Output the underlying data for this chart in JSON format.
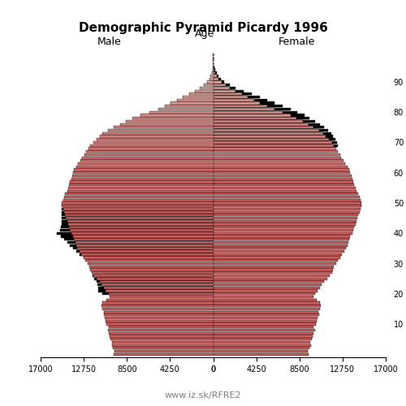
{
  "title": "Demographic Pyramid Picardy 1996",
  "xlabel_left": "Male",
  "xlabel_right": "Female",
  "ylabel": "Age",
  "footnote": "www.iz.sk/RFRE2",
  "xlim": 17000,
  "xticks": [
    0,
    4250,
    8500,
    12750,
    17000
  ],
  "bar_height": 0.85,
  "color_young": "#cd5c5c",
  "color_old_male": "#c8a8a0",
  "color_old_female": "#c8a8a0",
  "color_black": "#000000",
  "ages": [
    0,
    1,
    2,
    3,
    4,
    5,
    6,
    7,
    8,
    9,
    10,
    11,
    12,
    13,
    14,
    15,
    16,
    17,
    18,
    19,
    20,
    21,
    22,
    23,
    24,
    25,
    26,
    27,
    28,
    29,
    30,
    31,
    32,
    33,
    34,
    35,
    36,
    37,
    38,
    39,
    40,
    41,
    42,
    43,
    44,
    45,
    46,
    47,
    48,
    49,
    50,
    51,
    52,
    53,
    54,
    55,
    56,
    57,
    58,
    59,
    60,
    61,
    62,
    63,
    64,
    65,
    66,
    67,
    68,
    69,
    70,
    71,
    72,
    73,
    74,
    75,
    76,
    77,
    78,
    79,
    80,
    81,
    82,
    83,
    84,
    85,
    86,
    87,
    88,
    89,
    90,
    91,
    92,
    93,
    94,
    95,
    96,
    97,
    98,
    99
  ],
  "male": [
    9800,
    9750,
    9900,
    10000,
    9950,
    10100,
    10200,
    10300,
    10400,
    10300,
    10500,
    10600,
    10700,
    10800,
    10750,
    10900,
    11000,
    10900,
    10500,
    10200,
    10300,
    10600,
    10800,
    11000,
    11200,
    11500,
    11800,
    12000,
    12100,
    12200,
    12400,
    12600,
    12800,
    13000,
    13200,
    13400,
    13500,
    13600,
    13700,
    13800,
    14000,
    14100,
    14200,
    14300,
    14400,
    14500,
    14600,
    14700,
    14800,
    14900,
    14900,
    14800,
    14700,
    14600,
    14400,
    14300,
    14200,
    14100,
    14000,
    13900,
    13800,
    13700,
    13500,
    13300,
    13100,
    12900,
    12700,
    12500,
    12300,
    12100,
    11800,
    11500,
    11200,
    10900,
    10400,
    9800,
    9200,
    8600,
    8000,
    7200,
    6300,
    5400,
    4800,
    4200,
    3600,
    3000,
    2400,
    1800,
    1300,
    900,
    600,
    400,
    250,
    150,
    80,
    40,
    20,
    10,
    5,
    2
  ],
  "female": [
    9400,
    9350,
    9500,
    9600,
    9550,
    9700,
    9800,
    9900,
    10000,
    9900,
    10100,
    10200,
    10300,
    10400,
    10350,
    10500,
    10600,
    10500,
    10200,
    9900,
    10000,
    10300,
    10500,
    10700,
    10900,
    11200,
    11500,
    11700,
    11800,
    11900,
    12100,
    12300,
    12500,
    12700,
    12900,
    13100,
    13200,
    13300,
    13400,
    13500,
    13700,
    13800,
    13900,
    14000,
    14100,
    14200,
    14300,
    14400,
    14500,
    14600,
    14600,
    14500,
    14400,
    14300,
    14100,
    14000,
    13900,
    13800,
    13700,
    13600,
    13500,
    13400,
    13200,
    13000,
    12800,
    12600,
    12500,
    12300,
    12100,
    11900,
    11700,
    11400,
    11100,
    10800,
    10400,
    9900,
    9400,
    8800,
    8200,
    7600,
    6800,
    6000,
    5300,
    4600,
    4000,
    3400,
    2800,
    2200,
    1600,
    1200,
    800,
    550,
    350,
    230,
    130,
    70,
    35,
    15,
    7,
    3
  ],
  "male_black": [
    0,
    0,
    0,
    0,
    0,
    0,
    0,
    0,
    0,
    0,
    0,
    0,
    0,
    0,
    0,
    0,
    0,
    0,
    0,
    0,
    600,
    700,
    500,
    400,
    300,
    200,
    100,
    0,
    0,
    0,
    0,
    0,
    0,
    200,
    300,
    400,
    600,
    800,
    1000,
    1200,
    1400,
    1000,
    800,
    600,
    500,
    400,
    300,
    200,
    100,
    0,
    0,
    0,
    0,
    0,
    0,
    0,
    0,
    0,
    0,
    0,
    0,
    0,
    0,
    0,
    0,
    0,
    0,
    0,
    0,
    0,
    0,
    0,
    0,
    0,
    0,
    0,
    0,
    0,
    0,
    0,
    0,
    0,
    0,
    0,
    0,
    0,
    0,
    0,
    0,
    0,
    0,
    0,
    0,
    0,
    0,
    0,
    0,
    0,
    0,
    0
  ],
  "female_black": [
    0,
    0,
    0,
    0,
    0,
    0,
    0,
    0,
    0,
    0,
    0,
    0,
    0,
    0,
    0,
    0,
    0,
    0,
    0,
    0,
    0,
    0,
    0,
    0,
    0,
    0,
    0,
    0,
    0,
    0,
    0,
    0,
    0,
    0,
    0,
    0,
    0,
    0,
    0,
    0,
    0,
    0,
    0,
    0,
    0,
    0,
    0,
    0,
    0,
    0,
    0,
    0,
    0,
    0,
    0,
    0,
    0,
    0,
    0,
    0,
    0,
    0,
    0,
    0,
    0,
    0,
    0,
    0,
    0,
    400,
    500,
    600,
    700,
    800,
    900,
    1000,
    1100,
    1200,
    1300,
    1400,
    1500,
    1600,
    1500,
    1400,
    1300,
    1200,
    1000,
    800,
    600,
    400,
    300,
    200,
    150,
    100,
    50,
    25,
    10,
    5,
    2,
    1
  ]
}
